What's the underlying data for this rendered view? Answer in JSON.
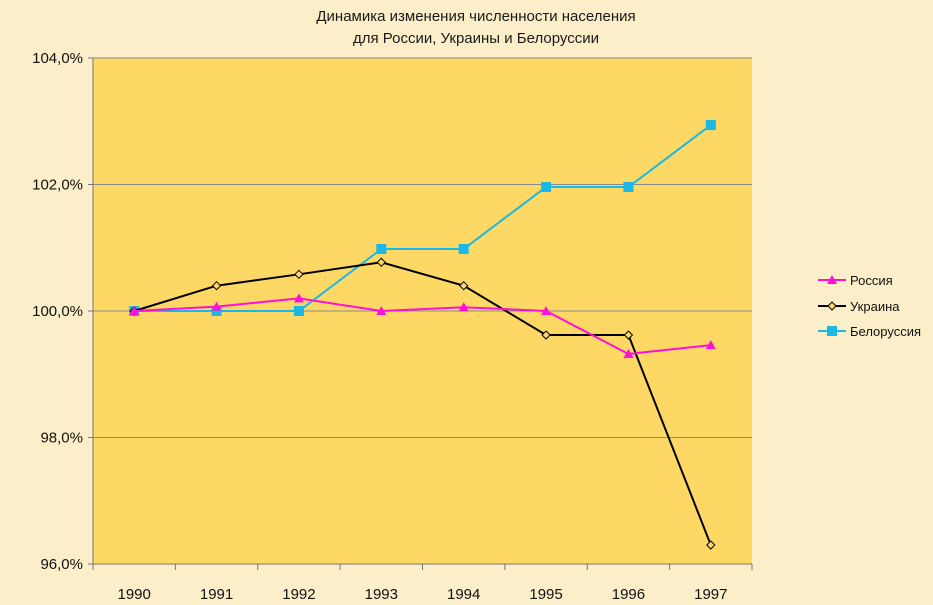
{
  "chart_data": {
    "type": "line",
    "title_lines": [
      "Динамика изменения  численности населения",
      "для России, Украины и Белоруссии"
    ],
    "categories": [
      "1990",
      "1991",
      "1992",
      "1993",
      "1994",
      "1995",
      "1996",
      "1997"
    ],
    "ylim": [
      96,
      104
    ],
    "yticks": [
      96,
      98,
      100,
      102,
      104
    ],
    "ytick_labels": [
      "96,0%",
      "98,0%",
      "100,0%",
      "102,0%",
      "104,0%"
    ],
    "grid": true,
    "legend_position": "right",
    "colors": {
      "plot_background": "#fdd865",
      "page_background": "#fbeec8",
      "gridline": "#8a8a8a"
    },
    "series": [
      {
        "name": "Россия",
        "color": "#ff10d8",
        "marker": "triangle",
        "values": [
          100.0,
          100.07,
          100.2,
          100.0,
          100.06,
          100.0,
          99.32,
          99.46
        ]
      },
      {
        "name": "Украина",
        "color": "#000000",
        "marker": "diamond",
        "values": [
          100.0,
          100.4,
          100.58,
          100.77,
          100.4,
          99.62,
          99.62,
          96.3
        ]
      },
      {
        "name": "Белоруссия",
        "color": "#19b8e6",
        "marker": "square",
        "values": [
          100.0,
          100.0,
          100.0,
          100.98,
          100.98,
          101.96,
          101.96,
          102.94
        ]
      }
    ]
  }
}
